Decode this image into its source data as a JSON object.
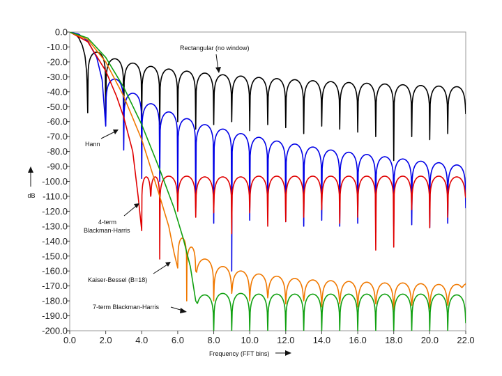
{
  "chart_data": {
    "type": "line",
    "title": "",
    "xlabel": "Frequency (FFT bins)",
    "ylabel": "dB",
    "xlim": [
      0,
      22
    ],
    "ylim": [
      -200,
      0
    ],
    "x_ticks": [
      "0.0",
      "2.0",
      "4.0",
      "6.0",
      "8.0",
      "10.0",
      "12.0",
      "14.0",
      "16.0",
      "18.0",
      "20.0",
      "22.0"
    ],
    "x_tick_values": [
      0,
      2,
      4,
      6,
      8,
      10,
      12,
      14,
      16,
      18,
      20,
      22
    ],
    "y_ticks": [
      "0.0",
      "-10.0",
      "-20.0",
      "-30.0",
      "-40.0",
      "-50.0",
      "-60.0",
      "-70.0",
      "-80.0",
      "-90.0",
      "-100.0",
      "-110.0",
      "-120.0",
      "-130.0",
      "-140.0",
      "-150.0",
      "-160.0",
      "-170.0",
      "-180.0",
      "-190.0",
      "-200.0"
    ],
    "y_tick_values": [
      0,
      -10,
      -20,
      -30,
      -40,
      -50,
      -60,
      -70,
      -80,
      -90,
      -100,
      -110,
      -120,
      -130,
      -140,
      -150,
      -160,
      -170,
      -180,
      -190,
      -200
    ],
    "grid": false,
    "series": [
      {
        "name": "Rectangular (no window)",
        "color": "#000000",
        "main_lobe_x": [
          0,
          0.3,
          0.5,
          0.7,
          0.85,
          0.95,
          1.0
        ],
        "main_lobe_db": [
          0,
          -1.3,
          -3.9,
          -9.0,
          -16,
          -28,
          -54
        ],
        "null_start_bin": 1,
        "peak_x": [
          1.5,
          2.5,
          3.5,
          4.5,
          5.5,
          6.5,
          7.5,
          8.5,
          9.5,
          10.5,
          11.5,
          12.5,
          13.5,
          14.5,
          15.5,
          16.5,
          17.5,
          18.5,
          19.5,
          20.5,
          21.5
        ],
        "peak_db": [
          -13.5,
          -17.9,
          -20.8,
          -23.0,
          -24.8,
          -26.2,
          -27.5,
          -28.6,
          -29.5,
          -30.4,
          -31.2,
          -31.9,
          -32.6,
          -33.2,
          -33.8,
          -34.3,
          -34.8,
          -35.3,
          -35.8,
          -36.2,
          -36.6
        ],
        "null_x": [
          1,
          2,
          3,
          4,
          5,
          6,
          7,
          8,
          9,
          10,
          11,
          12,
          13,
          14,
          15,
          16,
          17,
          18,
          19,
          20,
          21,
          22
        ],
        "null_db": [
          -54,
          -62,
          -60,
          -58,
          -62,
          -60,
          -65,
          -62,
          -60,
          -66,
          -62,
          -64,
          -68,
          -63,
          -65,
          -67,
          -70,
          -86,
          -70,
          -72,
          -68,
          -55
        ]
      },
      {
        "name": "Hann",
        "color": "#0000e6",
        "main_lobe_x": [
          0,
          0.5,
          1.0,
          1.5,
          1.8,
          2.0
        ],
        "main_lobe_db": [
          0,
          -1.4,
          -6.0,
          -17,
          -32,
          -63
        ],
        "null_start_bin": 2,
        "peak_x": [
          2.5,
          3.5,
          4.5,
          5.5,
          6.5,
          7.5,
          8.5,
          9.5,
          10.5,
          11.5,
          12.5,
          13.5,
          14.5,
          15.5,
          16.5,
          17.5,
          18.5,
          19.5,
          20.5,
          21.5
        ],
        "peak_db": [
          -31.5,
          -41.0,
          -48.0,
          -53.5,
          -58.0,
          -62.0,
          -65.0,
          -68.0,
          -70.5,
          -73.0,
          -75.0,
          -77.0,
          -79.0,
          -80.5,
          -82.0,
          -83.5,
          -85.0,
          -86.5,
          -87.5,
          -89.0
        ],
        "null_x": [
          2,
          3,
          4,
          5,
          6,
          7,
          8,
          9,
          10,
          11,
          12,
          13,
          14,
          15,
          16,
          17,
          18,
          19,
          20,
          21,
          22
        ],
        "null_db": [
          -63,
          -79,
          -98,
          -100,
          -108,
          -118,
          -128,
          -160,
          -126,
          -122,
          -127,
          -130,
          -126,
          -130,
          -128,
          -134,
          -130,
          -129,
          -131,
          -128,
          -118
        ]
      },
      {
        "name": "4-term Blackman-Harris",
        "color": "#e00000",
        "main_lobe_x": [
          0,
          1.0,
          2.0,
          2.6,
          3.0,
          3.5,
          3.8,
          4.0
        ],
        "main_lobe_db": [
          0,
          -6.5,
          -26,
          -43,
          -57,
          -80,
          -110,
          -133
        ],
        "null_start_bin": 4,
        "peak_x": [
          4.25,
          4.75,
          5.5,
          6.5,
          7.5,
          8.5,
          9.5,
          10.5,
          11.5,
          12.5,
          13.5,
          14.5,
          15.5,
          16.5,
          17.5,
          18.5,
          19.5,
          20.5,
          21.5
        ],
        "peak_db": [
          -97,
          -97,
          -96.5,
          -96.5,
          -97,
          -97,
          -97,
          -96.5,
          -96.5,
          -96.5,
          -96.5,
          -96.5,
          -96.5,
          -96.5,
          -96.5,
          -96.5,
          -96.5,
          -96.5,
          -97
        ],
        "null_x": [
          4,
          4.5,
          5,
          6,
          7,
          8,
          9,
          10,
          11,
          12,
          13,
          14,
          15,
          16,
          17,
          18,
          19,
          20,
          21,
          22
        ],
        "null_db": [
          -133,
          -110,
          -152,
          -120,
          -124,
          -121,
          -135,
          -121,
          -130,
          -127,
          -124,
          -119,
          -128,
          -124,
          -146,
          -144,
          -119,
          -131,
          -124,
          -111
        ]
      },
      {
        "name": "Kaiser-Bessel (B=18)",
        "color": "#f07800",
        "main_lobe_x": [
          0,
          1.0,
          2.0,
          3.0,
          4.0,
          5.0,
          5.5,
          5.8,
          6.0
        ],
        "main_lobe_db": [
          0,
          -5,
          -20,
          -43,
          -72,
          -110,
          -130,
          -148,
          -158
        ],
        "null_start_bin": 6,
        "peak_x": [
          6.25,
          6.75,
          7.5,
          8.5,
          9.5,
          10.5,
          11.5,
          12.5,
          13.5,
          14.5,
          15.5,
          16.5,
          17.5,
          18.5,
          19.5,
          20.5,
          21.5
        ],
        "peak_db": [
          -138,
          -144,
          -152,
          -157,
          -160,
          -162,
          -163.5,
          -165,
          -166,
          -166.5,
          -167,
          -167.5,
          -168,
          -168,
          -168.5,
          -169,
          -169
        ],
        "null_x": [
          6,
          6.5,
          7,
          8,
          9,
          10,
          11,
          12,
          13,
          14,
          15,
          16,
          17,
          18,
          19,
          20,
          21,
          22
        ],
        "null_db": [
          -158,
          -180,
          -160,
          -180,
          -175,
          -180,
          -178,
          -182,
          -180,
          -184,
          -182,
          -184,
          -182,
          -186,
          -183,
          -185,
          -183,
          -168
        ]
      },
      {
        "name": "7-term Blackman-Harris",
        "color": "#10a010",
        "main_lobe_x": [
          0,
          1.0,
          2.0,
          3.0,
          4.0,
          5.0,
          5.8,
          6.3,
          6.7,
          7.0
        ],
        "main_lobe_db": [
          0,
          -4,
          -17,
          -37,
          -62,
          -92,
          -118,
          -138,
          -157,
          -180
        ],
        "null_start_bin": 7,
        "peak_x": [
          7.2,
          7.5,
          8.5,
          9.5,
          10.5,
          11.5,
          12.5,
          13.5,
          14.5,
          15.5,
          16.5,
          17.5,
          18.5,
          19.5,
          20.5,
          21.5
        ],
        "peak_db": [
          -182,
          -176,
          -175,
          -175,
          -175.5,
          -175.5,
          -175.5,
          -175.5,
          -175.5,
          -175.5,
          -175.5,
          -175.5,
          -175.5,
          -175.5,
          -175.5,
          -176
        ],
        "null_x": [
          7,
          8,
          9,
          10,
          11,
          12,
          13,
          14,
          15,
          16,
          17,
          18,
          19,
          20,
          21,
          22
        ],
        "null_db": [
          -180,
          -200,
          -200,
          -200,
          -200,
          -200,
          -200,
          -200,
          -200,
          -200,
          -200,
          -200,
          -200,
          -200,
          -200,
          -195
        ]
      }
    ],
    "annotations": [
      {
        "series": "Rectangular (no window)",
        "text": "Rectangular (no window)"
      },
      {
        "series": "Hann",
        "text": "Hann"
      },
      {
        "series": "4-term Blackman-Harris",
        "text": "4-term",
        "text2": "Blackman-Harris"
      },
      {
        "series": "Kaiser-Bessel (B=18)",
        "text": "Kaiser-Bessel (B=18)"
      },
      {
        "series": "7-term Blackman-Harris",
        "text": "7-term Blackman-Harris"
      }
    ]
  }
}
